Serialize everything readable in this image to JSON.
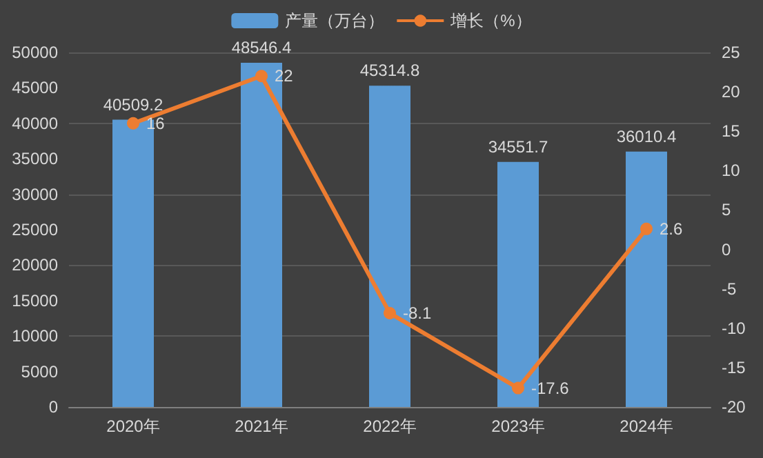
{
  "chart_data": {
    "type": "bar",
    "categories": [
      "2020年",
      "2021年",
      "2022年",
      "2023年",
      "2024年"
    ],
    "series": [
      {
        "name": "产量（万台）",
        "color": "#5b9bd5",
        "values": [
          40509.2,
          48546.4,
          45314.8,
          34551.7,
          36010.4
        ]
      },
      {
        "name": "增长（%）",
        "type": "line",
        "axis": "y2",
        "color": "#ed7d31",
        "values": [
          16,
          22,
          -8.1,
          -17.6,
          2.6
        ]
      }
    ],
    "ylim": [
      0,
      50000
    ],
    "yticks": [
      0,
      5000,
      10000,
      15000,
      20000,
      25000,
      30000,
      35000,
      40000,
      45000,
      50000
    ],
    "y2lim": [
      -20,
      25
    ],
    "y2ticks": [
      -20,
      -15,
      -10,
      -5,
      0,
      5,
      10,
      15,
      20,
      25
    ],
    "data_labels": true,
    "grid": "y",
    "legend": "top",
    "marker": "circle"
  }
}
